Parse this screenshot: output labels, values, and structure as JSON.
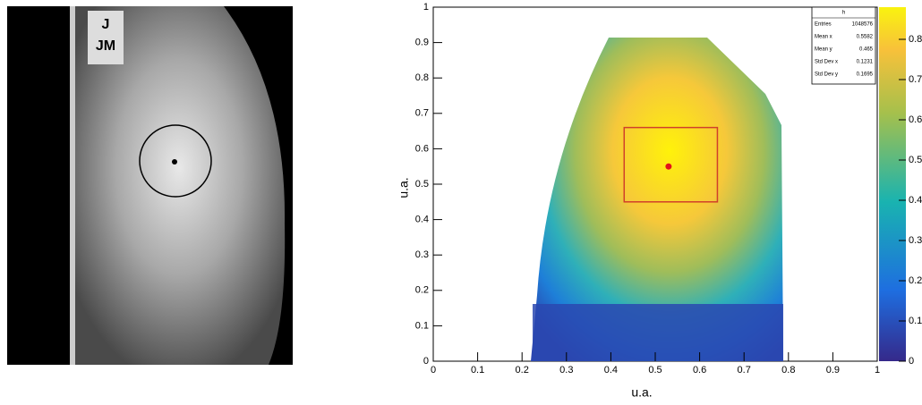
{
  "image_labels": [
    "J",
    "JM"
  ],
  "chart_data": {
    "type": "heatmap",
    "xlabel": "u.a.",
    "ylabel": "u.a.",
    "xlim": [
      0,
      1
    ],
    "ylim": [
      0,
      1
    ],
    "zlim": [
      0,
      0.88
    ],
    "xticks": [
      0,
      0.1,
      0.2,
      0.3,
      0.4,
      0.5,
      0.6,
      0.7,
      0.8,
      0.9,
      1
    ],
    "yticks": [
      0,
      0.1,
      0.2,
      0.3,
      0.4,
      0.5,
      0.6,
      0.7,
      0.8,
      0.9,
      1
    ],
    "zticks": [
      0,
      0.1,
      0.2,
      0.3,
      0.4,
      0.5,
      0.6,
      0.7,
      0.8
    ],
    "stats": {
      "title": "h",
      "labels": [
        "Entries",
        "Mean x",
        "Mean y",
        "Std Dev x",
        "Std Dev y"
      ],
      "values": [
        1048576,
        0.5582,
        0.465,
        0.1231,
        0.1695
      ]
    },
    "point": {
      "x": 0.53,
      "y": 0.55,
      "color": "#e3121a"
    },
    "roi": {
      "x": [
        0.43,
        0.64
      ],
      "y": [
        0.45,
        0.66
      ],
      "color": "#d0402a"
    }
  }
}
